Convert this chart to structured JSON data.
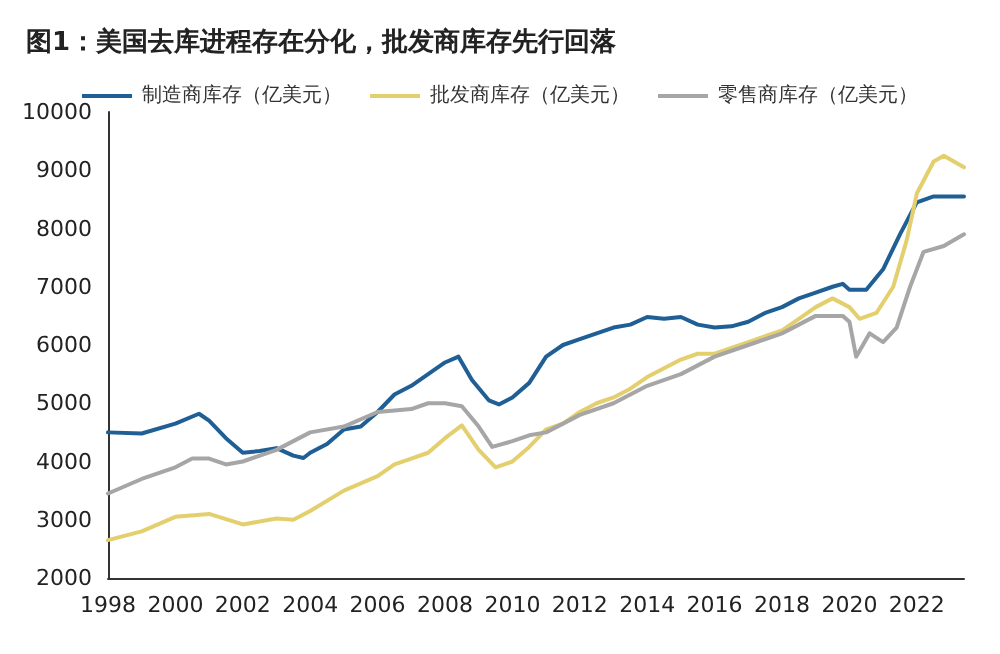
{
  "chart_data": {
    "type": "line",
    "title": "图1：美国去库进程存在分化，批发商库存先行回落",
    "series": [
      {
        "name": "制造商库存（亿美元）",
        "color": "#1f5f95",
        "x": [
          1998,
          1999,
          2000,
          2000.7,
          2001,
          2001.5,
          2002,
          2002.5,
          2003,
          2003.5,
          2003.8,
          2004,
          2004.5,
          2005,
          2005.5,
          2006,
          2006.5,
          2007,
          2007.5,
          2008,
          2008.4,
          2008.8,
          2009.3,
          2009.6,
          2010,
          2010.5,
          2011,
          2011.5,
          2012,
          2012.5,
          2013,
          2013.5,
          2014,
          2014.5,
          2015,
          2015.5,
          2016,
          2016.5,
          2017,
          2017.5,
          2018,
          2018.5,
          2019,
          2019.5,
          2019.8,
          2020,
          2020.5,
          2021,
          2021.5,
          2022,
          2022.5,
          2023,
          2023.4
        ],
        "values": [
          4500,
          4480,
          4650,
          4820,
          4700,
          4400,
          4150,
          4180,
          4230,
          4100,
          4060,
          4150,
          4300,
          4550,
          4600,
          4850,
          5150,
          5300,
          5500,
          5700,
          5800,
          5400,
          5050,
          4980,
          5100,
          5350,
          5800,
          6000,
          6100,
          6200,
          6300,
          6350,
          6480,
          6450,
          6480,
          6350,
          6300,
          6320,
          6400,
          6550,
          6650,
          6800,
          6900,
          7000,
          7050,
          6950,
          6950,
          7300,
          7900,
          8450,
          8550,
          8550,
          8550
        ]
      },
      {
        "name": "批发商库存（亿美元）",
        "color": "#e3cf6e",
        "x": [
          1998,
          1999,
          2000,
          2001,
          2002,
          2003,
          2003.5,
          2004,
          2005,
          2006,
          2006.5,
          2007,
          2007.5,
          2008,
          2008.5,
          2009,
          2009.5,
          2010,
          2010.5,
          2011,
          2011.5,
          2012,
          2012.5,
          2013,
          2013.5,
          2014,
          2014.5,
          2015,
          2015.5,
          2016,
          2016.5,
          2017,
          2017.5,
          2018,
          2018.5,
          2019,
          2019.5,
          2020,
          2020.3,
          2020.8,
          2021.3,
          2021.7,
          2022,
          2022.5,
          2022.8,
          2023.4
        ],
        "values": [
          2650,
          2800,
          3050,
          3100,
          2920,
          3020,
          3000,
          3150,
          3500,
          3750,
          3950,
          4050,
          4150,
          4400,
          4620,
          4200,
          3900,
          4000,
          4250,
          4550,
          4650,
          4850,
          5000,
          5100,
          5250,
          5450,
          5600,
          5750,
          5850,
          5850,
          5950,
          6050,
          6150,
          6250,
          6450,
          6650,
          6800,
          6650,
          6450,
          6550,
          7000,
          7800,
          8600,
          9150,
          9250,
          9050
        ]
      },
      {
        "name": "零售商库存（亿美元）",
        "color": "#a6a6a6",
        "x": [
          1998,
          1999,
          2000,
          2000.5,
          2001,
          2001.5,
          2002,
          2003,
          2004,
          2005,
          2006,
          2007,
          2007.5,
          2008,
          2008.5,
          2009,
          2009.4,
          2010,
          2010.5,
          2011,
          2012,
          2013,
          2014,
          2015,
          2016,
          2017,
          2018,
          2018.5,
          2019,
          2019.8,
          2020,
          2020.2,
          2020.6,
          2021,
          2021.4,
          2021.8,
          2022.2,
          2022.8,
          2023.4
        ],
        "values": [
          3450,
          3700,
          3900,
          4050,
          4050,
          3950,
          4000,
          4200,
          4500,
          4600,
          4850,
          4900,
          5000,
          5000,
          4950,
          4600,
          4250,
          4350,
          4450,
          4500,
          4800,
          5000,
          5300,
          5500,
          5800,
          6000,
          6200,
          6350,
          6500,
          6500,
          6400,
          5800,
          6200,
          6050,
          6300,
          7000,
          7600,
          7700,
          7900
        ]
      }
    ],
    "xlim": [
      1998,
      2023.4
    ],
    "xticks": [
      1998,
      2000,
      2002,
      2004,
      2006,
      2008,
      2010,
      2012,
      2014,
      2016,
      2018,
      2020,
      2022
    ],
    "ylim": [
      2000,
      10000
    ],
    "yticks": [
      2000,
      3000,
      4000,
      5000,
      6000,
      7000,
      8000,
      9000,
      10000
    ],
    "legend": "top",
    "marker": "none",
    "line_style": "solid"
  }
}
